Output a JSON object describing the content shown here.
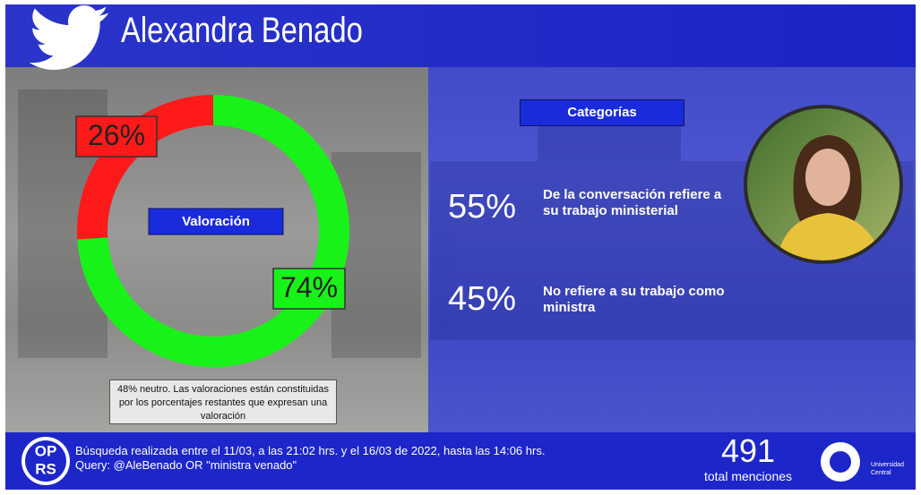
{
  "header": {
    "title": "Alexandra Benado"
  },
  "chart_data": {
    "type": "donut",
    "title": "Valoración",
    "values": [
      26,
      74
    ],
    "value_labels": [
      "26%",
      "74%"
    ],
    "colors": [
      "#ff1a1a",
      "#19f219"
    ]
  },
  "note": "48% neutro. Las valoraciones están constituidas por los porcentajes restantes que expresan una valoración",
  "categories": {
    "title": "Categorías",
    "items": [
      {
        "percent": "55%",
        "text": "De la conversación refiere a su trabajo ministerial"
      },
      {
        "percent": "45%",
        "text": "No refiere a su trabajo como ministra"
      }
    ]
  },
  "footer": {
    "logo": [
      "OP",
      "RS"
    ],
    "lines": [
      "Búsqueda realizada entre el 11/03, a las 21:02 hrs. y el 16/03 de 2022, hasta las 14:06 hrs.",
      "Query: @AleBenado OR \"ministra venado\""
    ],
    "count": "491",
    "count_label": "total menciones",
    "university": [
      "Universidad",
      "Central"
    ]
  }
}
